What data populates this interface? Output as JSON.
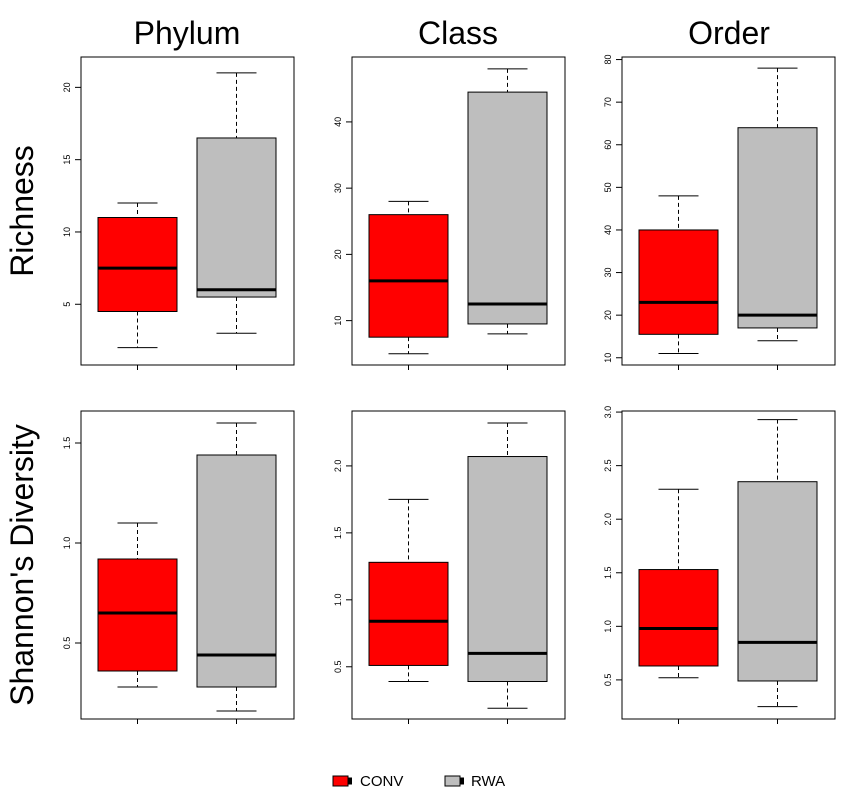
{
  "colors": {
    "CONV": "#ff0000",
    "RWA": "#bebebe",
    "line": "#000000"
  },
  "legend": [
    {
      "label": "CONV",
      "color": "#ff0000"
    },
    {
      "label": "RWA",
      "color": "#bebebe"
    }
  ],
  "column_titles": [
    "Phylum",
    "Class",
    "Order"
  ],
  "row_titles": [
    "Richness",
    "Shannon's Diversity"
  ],
  "chart_data": [
    {
      "type": "box",
      "row": "Richness",
      "title": "Phylum",
      "ylim": [
        0.8,
        22.1
      ],
      "yticks": [
        5,
        10,
        15,
        20
      ],
      "ytick_labels": [
        "5",
        "10",
        "15",
        "20"
      ],
      "series": [
        {
          "name": "CONV",
          "min": 2,
          "q1": 4.5,
          "median": 7.5,
          "q3": 11,
          "max": 12
        },
        {
          "name": "RWA",
          "min": 3,
          "q1": 5.5,
          "median": 6,
          "q3": 16.5,
          "max": 21
        }
      ]
    },
    {
      "type": "box",
      "row": "Richness",
      "title": "Class",
      "ylim": [
        3.3,
        49.8
      ],
      "yticks": [
        10,
        20,
        30,
        40
      ],
      "ytick_labels": [
        "10",
        "20",
        "30",
        "40"
      ],
      "series": [
        {
          "name": "CONV",
          "min": 5,
          "q1": 7.5,
          "median": 16,
          "q3": 26,
          "max": 28
        },
        {
          "name": "RWA",
          "min": 8,
          "q1": 9.5,
          "median": 12.5,
          "q3": 44.5,
          "max": 48
        }
      ]
    },
    {
      "type": "box",
      "row": "Richness",
      "title": "Order",
      "ylim": [
        8.3,
        80.6
      ],
      "yticks": [
        10,
        20,
        30,
        40,
        50,
        60,
        70,
        80
      ],
      "ytick_labels": [
        "10",
        "20",
        "30",
        "40",
        "50",
        "60",
        "70",
        "80"
      ],
      "series": [
        {
          "name": "CONV",
          "min": 11,
          "q1": 15.5,
          "median": 23,
          "q3": 40,
          "max": 48
        },
        {
          "name": "RWA",
          "min": 14,
          "q1": 17,
          "median": 20,
          "q3": 64,
          "max": 78
        }
      ]
    },
    {
      "type": "box",
      "row": "Shannon's Diversity",
      "title": "Phylum",
      "ylim": [
        0.12,
        1.66
      ],
      "yticks": [
        0.5,
        1.0,
        1.5
      ],
      "ytick_labels": [
        "0.5",
        "1.0",
        "1.5"
      ],
      "series": [
        {
          "name": "CONV",
          "min": 0.28,
          "q1": 0.36,
          "median": 0.65,
          "q3": 0.92,
          "max": 1.1
        },
        {
          "name": "RWA",
          "min": 0.16,
          "q1": 0.28,
          "median": 0.44,
          "q3": 1.44,
          "max": 1.6
        }
      ]
    },
    {
      "type": "box",
      "row": "Shannon's Diversity",
      "title": "Class",
      "ylim": [
        0.11,
        2.41
      ],
      "yticks": [
        0.5,
        1.0,
        1.5,
        2.0
      ],
      "ytick_labels": [
        "0.5",
        "1.0",
        "1.5",
        "2.0"
      ],
      "series": [
        {
          "name": "CONV",
          "min": 0.39,
          "q1": 0.51,
          "median": 0.84,
          "q3": 1.28,
          "max": 1.75
        },
        {
          "name": "RWA",
          "min": 0.19,
          "q1": 0.39,
          "median": 0.6,
          "q3": 2.07,
          "max": 2.32
        }
      ]
    },
    {
      "type": "box",
      "row": "Shannon's Diversity",
      "title": "Order",
      "ylim": [
        0.135,
        3.01
      ],
      "yticks": [
        0.5,
        1.0,
        1.5,
        2.0,
        2.5,
        3.0
      ],
      "ytick_labels": [
        "0.5",
        "1.0",
        "1.5",
        "2.0",
        "2.5",
        "3.0"
      ],
      "series": [
        {
          "name": "CONV",
          "min": 0.52,
          "q1": 0.63,
          "median": 0.98,
          "q3": 1.53,
          "max": 2.28
        },
        {
          "name": "RWA",
          "min": 0.25,
          "q1": 0.49,
          "median": 0.85,
          "q3": 2.35,
          "max": 2.93
        }
      ]
    }
  ]
}
